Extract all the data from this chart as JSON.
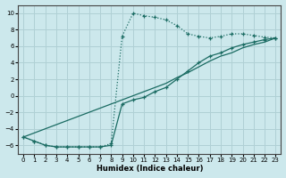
{
  "xlabel": "Humidex (Indice chaleur)",
  "xlim": [
    -0.5,
    23.5
  ],
  "ylim": [
    -7,
    11
  ],
  "xticks": [
    0,
    1,
    2,
    3,
    4,
    5,
    6,
    7,
    8,
    9,
    10,
    11,
    12,
    13,
    14,
    15,
    16,
    17,
    18,
    19,
    20,
    21,
    22,
    23
  ],
  "yticks": [
    -6,
    -4,
    -2,
    0,
    2,
    4,
    6,
    8,
    10
  ],
  "bg_color": "#cce8ec",
  "grid_color": "#b0d0d5",
  "line_color": "#1a6b62",
  "line1_x": [
    0,
    1,
    2,
    3,
    4,
    5,
    6,
    7,
    8,
    9,
    10,
    11,
    12,
    13,
    14,
    15,
    16,
    17,
    18,
    19,
    20,
    21,
    22,
    23
  ],
  "line1_y": [
    -5.0,
    -5.5,
    -6.0,
    -6.2,
    -6.2,
    -6.2,
    -6.2,
    -6.2,
    -5.8,
    7.2,
    10.0,
    9.7,
    9.5,
    9.2,
    8.5,
    7.5,
    7.2,
    7.0,
    7.2,
    7.5,
    7.5,
    7.3,
    7.1,
    7.0
  ],
  "line2_x": [
    0,
    1,
    2,
    3,
    4,
    5,
    6,
    7,
    8,
    9,
    10,
    11,
    12,
    13,
    14,
    15,
    16,
    17,
    18,
    19,
    20,
    21,
    22,
    23
  ],
  "line2_y": [
    -5.0,
    -5.5,
    -6.0,
    -6.2,
    -6.2,
    -6.2,
    -6.2,
    -6.2,
    -6.0,
    -1.0,
    -0.5,
    -0.2,
    0.5,
    1.0,
    2.0,
    3.0,
    4.0,
    4.8,
    5.2,
    5.8,
    6.2,
    6.5,
    6.8,
    7.0
  ],
  "line3_x": [
    0,
    1,
    2,
    3,
    4,
    5,
    6,
    7,
    8,
    9,
    10,
    11,
    12,
    13,
    14,
    15,
    16,
    17,
    18,
    19,
    20,
    21,
    22,
    23
  ],
  "line3_y": [
    -5.0,
    -4.5,
    -4.0,
    -3.5,
    -3.0,
    -2.5,
    -2.0,
    -1.5,
    -1.0,
    -0.5,
    0.0,
    0.5,
    1.0,
    1.5,
    2.2,
    2.8,
    3.5,
    4.2,
    4.8,
    5.2,
    5.8,
    6.2,
    6.5,
    7.0
  ]
}
